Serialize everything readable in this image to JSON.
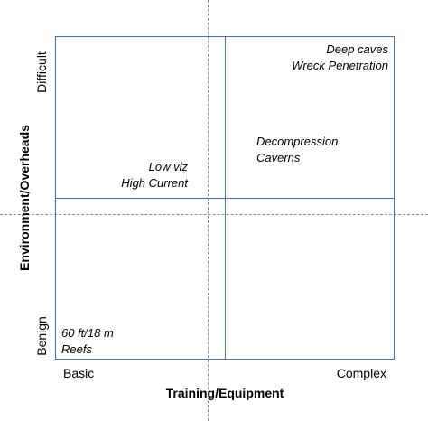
{
  "colors": {
    "frame_line": "#4a6fa5",
    "guide_line": "#8c8c8c"
  },
  "axes": {
    "x_title": "Training/Equipment",
    "y_title": "Environment/Overheads",
    "x_low": "Basic",
    "x_high": "Complex",
    "y_low": "Benign",
    "y_high": "Difficult"
  },
  "quadrant_notes": {
    "top_right": [
      "Deep caves",
      "Wreck Penetration"
    ],
    "middle_right": [
      "Decompression",
      "Caverns"
    ],
    "middle_left": [
      "Low viz",
      "High Current"
    ],
    "bottom_left": [
      "60 ft/18 m",
      "Reefs"
    ]
  }
}
